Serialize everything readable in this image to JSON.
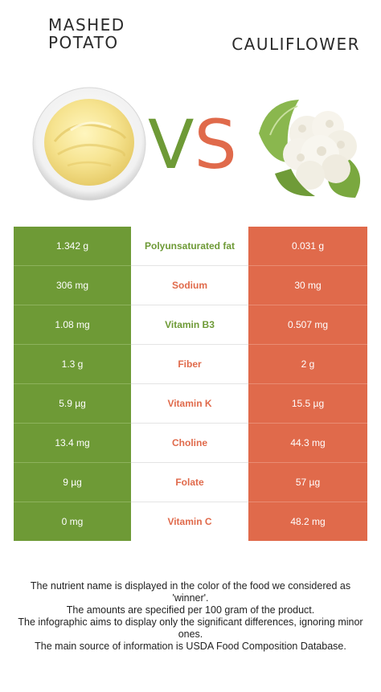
{
  "left_food": {
    "name_line1": "MASHED",
    "name_line2": "POTATO",
    "color": "#6e9a36"
  },
  "right_food": {
    "name": "CAULIFLOWER",
    "color": "#e06a4b"
  },
  "vs": {
    "v": "V",
    "s": "S"
  },
  "rows": [
    {
      "left": "1.342 g",
      "nutrient": "Polyunsaturated fat",
      "right": "0.031 g",
      "winner": "left"
    },
    {
      "left": "306 mg",
      "nutrient": "Sodium",
      "right": "30 mg",
      "winner": "right"
    },
    {
      "left": "1.08 mg",
      "nutrient": "Vitamin B3",
      "right": "0.507 mg",
      "winner": "left"
    },
    {
      "left": "1.3 g",
      "nutrient": "Fiber",
      "right": "2 g",
      "winner": "right"
    },
    {
      "left": "5.9 µg",
      "nutrient": "Vitamin K",
      "right": "15.5 µg",
      "winner": "right"
    },
    {
      "left": "13.4 mg",
      "nutrient": "Choline",
      "right": "44.3 mg",
      "winner": "right"
    },
    {
      "left": "9 µg",
      "nutrient": "Folate",
      "right": "57 µg",
      "winner": "right"
    },
    {
      "left": "0 mg",
      "nutrient": "Vitamin C",
      "right": "48.2 mg",
      "winner": "right"
    }
  ],
  "notes": [
    "The nutrient name is displayed in the color of the food we considered as 'winner'.",
    "The amounts are specified per 100 gram of the product.",
    "The infographic aims to display only the significant differences, ignoring minor ones.",
    "The main source of information is USDA Food Composition Database."
  ]
}
